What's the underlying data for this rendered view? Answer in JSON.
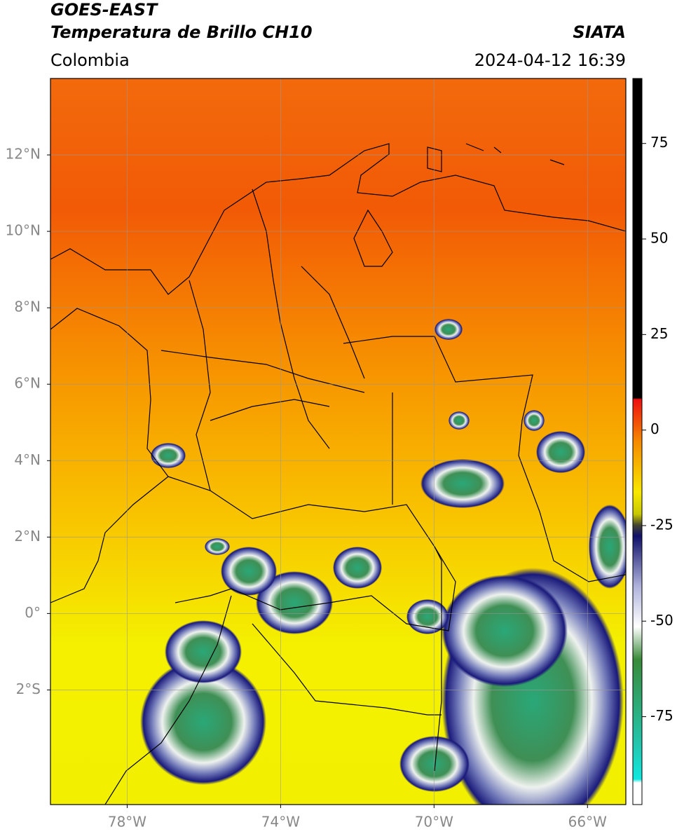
{
  "header": {
    "title": "GOES-EAST",
    "subtitle": "Temperatura de Brillo CH10",
    "region": "Colombia",
    "agency": "SIATA",
    "datetime": "2024-04-12 16:39"
  },
  "map": {
    "lon_range": [
      -80,
      -65
    ],
    "lat_range": [
      -5,
      14
    ],
    "xticks": [
      {
        "value": -78,
        "label": "78°W"
      },
      {
        "value": -74,
        "label": "74°W"
      },
      {
        "value": -70,
        "label": "70°W"
      },
      {
        "value": -66,
        "label": "66°W"
      }
    ],
    "yticks": [
      {
        "value": 12,
        "label": "12°N"
      },
      {
        "value": 10,
        "label": "10°N"
      },
      {
        "value": 8,
        "label": "8°N"
      },
      {
        "value": 6,
        "label": "6°N"
      },
      {
        "value": 4,
        "label": "4°N"
      },
      {
        "value": 2,
        "label": "2°N"
      },
      {
        "value": 0,
        "label": "0°"
      },
      {
        "value": -2,
        "label": "2°S"
      }
    ]
  },
  "colorbar": {
    "range": [
      -98,
      92
    ],
    "ticks": [
      75,
      50,
      25,
      0,
      -25,
      -50,
      -75
    ]
  }
}
